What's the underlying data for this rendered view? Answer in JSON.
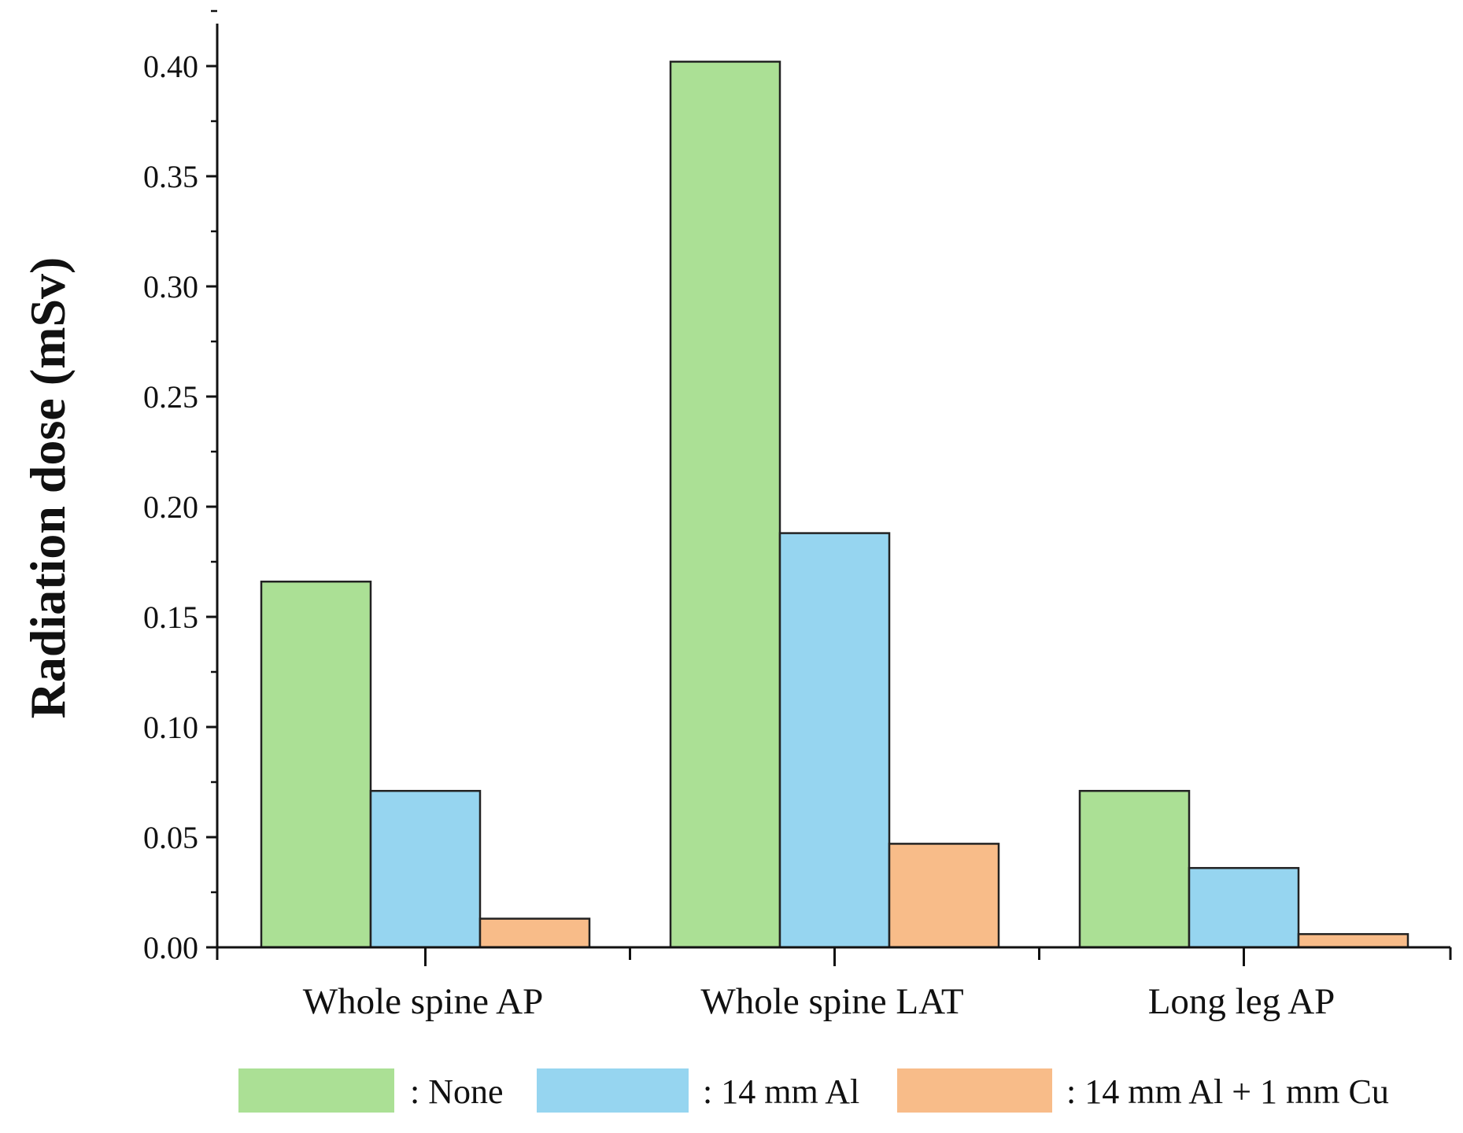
{
  "chart_data": {
    "type": "bar",
    "title": "",
    "xlabel": "",
    "ylabel": "Radiation dose (mSv)",
    "ylim": [
      0,
      0.42
    ],
    "yticks": [
      "0.00",
      "0.05",
      "0.10",
      "0.15",
      "0.20",
      "0.25",
      "0.30",
      "0.35",
      "0.40"
    ],
    "categories": [
      "Whole spine AP",
      "Whole spine LAT",
      "Long leg AP"
    ],
    "series": [
      {
        "name": ": None",
        "color": "#abe095",
        "values": [
          0.166,
          0.402,
          0.071
        ]
      },
      {
        "name": ": 14 mm Al",
        "color": "#96d5f0",
        "values": [
          0.071,
          0.188,
          0.036
        ]
      },
      {
        "name": ": 14 mm Al + 1 mm Cu",
        "color": "#f8bc89",
        "values": [
          0.013,
          0.047,
          0.006
        ]
      }
    ],
    "grid": false,
    "legend": "bottom"
  }
}
